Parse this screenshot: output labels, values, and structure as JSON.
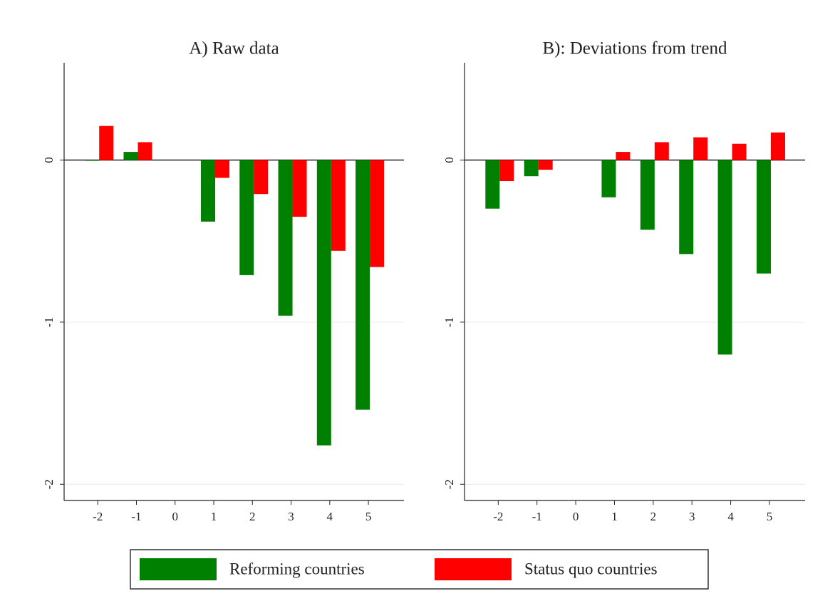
{
  "chart_data": [
    {
      "type": "bar",
      "title": "A) Raw data",
      "x": [
        -2,
        -1,
        0,
        1,
        2,
        3,
        4,
        5
      ],
      "xlim": [
        -2.87,
        5.92
      ],
      "xticks": [
        -2,
        -1,
        0,
        1,
        2,
        3,
        4,
        5
      ],
      "ylim": [
        -2.1,
        0.6
      ],
      "yticks": [
        -2,
        -1,
        0
      ],
      "grid": true,
      "series": [
        {
          "name": "Reforming countries",
          "color": "#008000",
          "values": [
            -0.005,
            0.05,
            null,
            -0.38,
            -0.71,
            -0.96,
            -1.76,
            -1.54
          ]
        },
        {
          "name": "Status quo countries",
          "color": "#ff0000",
          "values": [
            0.21,
            0.11,
            null,
            -0.11,
            -0.21,
            -0.35,
            -0.56,
            -0.66
          ]
        }
      ]
    },
    {
      "type": "bar",
      "title": "B): Deviations from trend",
      "x": [
        -2,
        -1,
        0,
        1,
        2,
        3,
        4,
        5
      ],
      "xlim": [
        -2.87,
        5.92
      ],
      "xticks": [
        -2,
        -1,
        0,
        1,
        2,
        3,
        4,
        5
      ],
      "ylim": [
        -2.1,
        0.6
      ],
      "yticks": [
        -2,
        -1,
        0
      ],
      "grid": true,
      "series": [
        {
          "color": "#008000",
          "values": [
            -0.3,
            -0.1,
            null,
            -0.23,
            -0.43,
            -0.58,
            -1.2,
            -0.7
          ]
        },
        {
          "color": "#ff0000",
          "values": [
            -0.13,
            -0.06,
            null,
            0.05,
            0.11,
            0.14,
            0.1,
            0.17
          ]
        }
      ]
    }
  ]
}
